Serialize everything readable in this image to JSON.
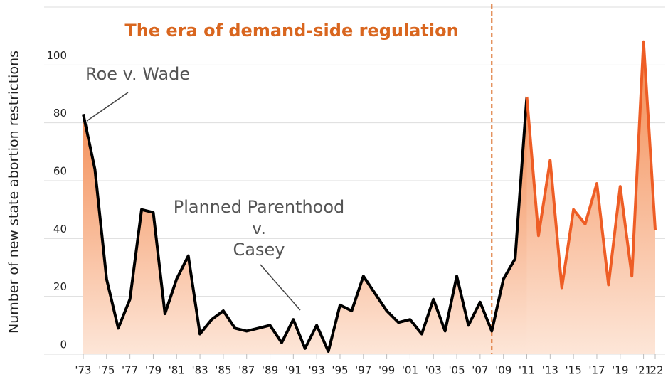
{
  "chart_data": {
    "type": "line",
    "title": "The era of demand-side regulation",
    "title_color": "#d9661f",
    "y_label": "Number of new state abortion restrictions",
    "x": [
      1973,
      1974,
      1975,
      1976,
      1977,
      1978,
      1979,
      1980,
      1981,
      1982,
      1983,
      1984,
      1985,
      1986,
      1987,
      1988,
      1989,
      1990,
      1991,
      1992,
      1993,
      1994,
      1995,
      1996,
      1997,
      1998,
      1999,
      2000,
      2001,
      2002,
      2003,
      2004,
      2005,
      2006,
      2007,
      2008,
      2009,
      2010,
      2011,
      2012,
      2013,
      2014,
      2015,
      2016,
      2017,
      2018,
      2019,
      2020,
      2021,
      2022
    ],
    "series": [
      {
        "color": "#000000",
        "values": [
          83,
          64,
          26,
          9,
          19,
          50,
          49,
          14,
          26,
          34,
          7,
          12,
          15,
          9,
          8,
          9,
          10,
          4,
          12,
          2,
          10,
          1,
          17,
          15,
          27,
          21,
          15,
          11,
          12,
          7,
          19,
          8,
          27,
          10,
          18,
          8,
          26,
          33,
          89,
          null,
          null,
          null,
          null,
          null,
          null,
          null,
          null,
          null,
          null,
          null
        ]
      },
      {
        "color": "#ee5d25",
        "values": [
          null,
          null,
          null,
          null,
          null,
          null,
          null,
          null,
          null,
          null,
          null,
          null,
          null,
          null,
          null,
          null,
          null,
          null,
          null,
          null,
          null,
          null,
          null,
          null,
          null,
          null,
          null,
          null,
          null,
          null,
          null,
          null,
          null,
          null,
          null,
          null,
          null,
          null,
          89,
          41,
          67,
          23,
          50,
          45,
          59,
          24,
          58,
          27,
          108,
          43
        ]
      }
    ],
    "area_colors": [
      "#f3894f",
      "#fde6d8"
    ],
    "xlim": [
      1973,
      2022
    ],
    "xticks": [
      {
        "value": 1973,
        "label": "'73"
      },
      {
        "value": 1975,
        "label": "'75"
      },
      {
        "value": 1977,
        "label": "'77"
      },
      {
        "value": 1979,
        "label": "'79"
      },
      {
        "value": 1981,
        "label": "'81"
      },
      {
        "value": 1983,
        "label": "'83"
      },
      {
        "value": 1985,
        "label": "'85"
      },
      {
        "value": 1987,
        "label": "'87"
      },
      {
        "value": 1989,
        "label": "'89"
      },
      {
        "value": 1991,
        "label": "'91"
      },
      {
        "value": 1993,
        "label": "'93"
      },
      {
        "value": 1995,
        "label": "'95"
      },
      {
        "value": 1997,
        "label": "'97"
      },
      {
        "value": 1999,
        "label": "'99"
      },
      {
        "value": 2001,
        "label": "'01"
      },
      {
        "value": 2003,
        "label": "'03"
      },
      {
        "value": 2005,
        "label": "'05"
      },
      {
        "value": 2007,
        "label": "'07"
      },
      {
        "value": 2009,
        "label": "'09"
      },
      {
        "value": 2011,
        "label": "'11"
      },
      {
        "value": 2013,
        "label": "'13"
      },
      {
        "value": 2015,
        "label": "'15"
      },
      {
        "value": 2017,
        "label": "'17"
      },
      {
        "value": 2019,
        "label": "'19"
      },
      {
        "value": 2021,
        "label": "'21"
      },
      {
        "value": 2022,
        "label": "'22"
      }
    ],
    "ylim": [
      0,
      120
    ],
    "yticks": [
      0,
      20,
      40,
      60,
      80,
      100
    ],
    "grid": true,
    "vline": {
      "x": 2008,
      "color": "#d9661f",
      "dashed": true
    },
    "annotations": [
      {
        "text": "Roe v. Wade"
      },
      {
        "lines": [
          "Planned Parenthood",
          "v.",
          "Casey"
        ]
      }
    ]
  }
}
